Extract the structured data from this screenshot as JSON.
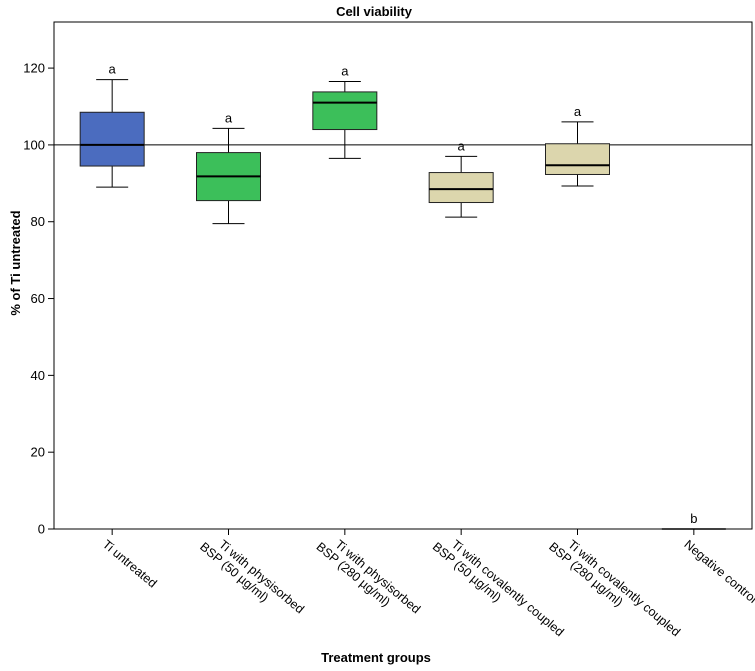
{
  "chart_data": {
    "type": "box",
    "title": "Cell viability",
    "xlabel": "Treatment groups",
    "ylabel": "% of Ti untreated",
    "ylim": [
      0,
      132
    ],
    "yticks": [
      "0",
      "20",
      "40",
      "60",
      "80",
      "100",
      "120"
    ],
    "reference_line": 100,
    "groups": [
      {
        "label_lines": [
          "Ti untreated"
        ],
        "min": 89,
        "q1": 94.5,
        "median": 100,
        "q3": 108.5,
        "max": 117,
        "sig": "a",
        "color": "#4b6cbf"
      },
      {
        "label_lines": [
          "Ti with physisorbed",
          "BSP (50 µg/ml)"
        ],
        "min": 79.5,
        "q1": 85.5,
        "median": 91.8,
        "q3": 98,
        "max": 104.3,
        "sig": "a",
        "color": "#3cbf5a"
      },
      {
        "label_lines": [
          "Ti with physisorbed",
          "BSP (280 µg/ml)"
        ],
        "min": 96.5,
        "q1": 104,
        "median": 111,
        "q3": 113.8,
        "max": 116.5,
        "sig": "a",
        "color": "#3cbf5a"
      },
      {
        "label_lines": [
          "Ti with covalently coupled",
          "BSP (50 µg/ml)"
        ],
        "min": 81.2,
        "q1": 85,
        "median": 88.5,
        "q3": 92.8,
        "max": 97,
        "sig": "a",
        "color": "#dcd6ad"
      },
      {
        "label_lines": [
          "Ti with covalently coupled",
          "BSP (280 µg/ml)"
        ],
        "min": 89.3,
        "q1": 92.3,
        "median": 94.7,
        "q3": 100.3,
        "max": 106,
        "sig": "a",
        "color": "#dcd6ad"
      },
      {
        "label_lines": [
          "Negative control"
        ],
        "min": 0,
        "q1": 0,
        "median": 0,
        "q3": 0,
        "max": 0,
        "sig": "b",
        "color": "#dcd6ad"
      }
    ]
  }
}
